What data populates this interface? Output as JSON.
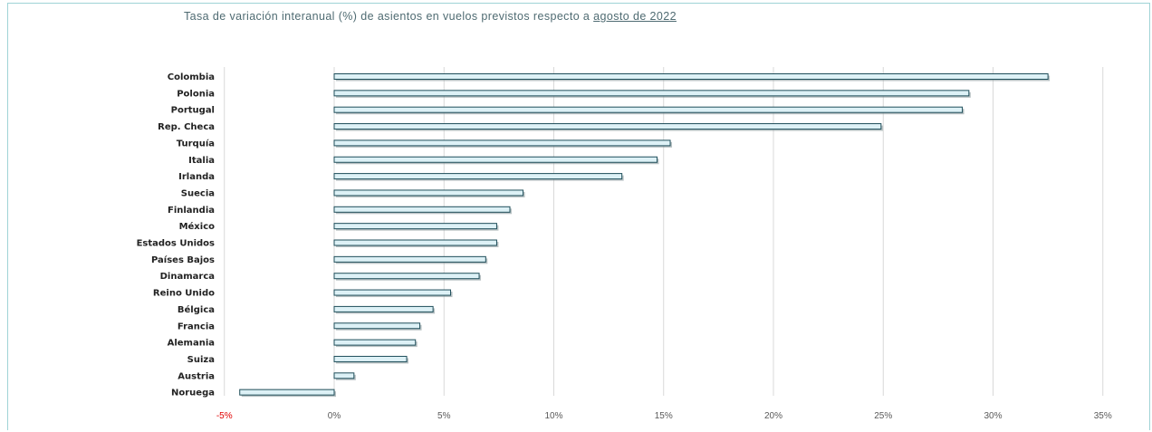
{
  "title_prefix": "Tasa de variación interanual (%) de asientos en vuelos previstos respecto a",
  "title_link": "agosto de 2022",
  "colors": {
    "bar_fill": "#ddf1f6",
    "bar_stroke": "#1f4e5a",
    "shadow": "#7f8f93",
    "grid": "#d9d9d9",
    "negative_tick": "#e00000"
  },
  "chart_data": {
    "type": "bar",
    "orientation": "horizontal",
    "title": "Tasa de variación interanual (%) de asientos en vuelos previstos respecto a agosto de 2022",
    "categories": [
      "Colombia",
      "Polonia",
      "Portugal",
      "Rep. Checa",
      "Turquía",
      "Italia",
      "Irlanda",
      "Suecia",
      "Finlandia",
      "México",
      "Estados Unidos",
      "Países Bajos",
      "Dinamarca",
      "Reino Unido",
      "Bélgica",
      "Francia",
      "Alemania",
      "Suiza",
      "Austria",
      "Noruega"
    ],
    "values": [
      32.5,
      28.9,
      28.6,
      24.9,
      15.3,
      14.7,
      13.1,
      8.6,
      8.0,
      7.4,
      7.4,
      6.9,
      6.6,
      5.3,
      4.5,
      3.9,
      3.7,
      3.3,
      0.9,
      -4.3
    ],
    "xlim": [
      -5,
      35
    ],
    "xticks": [
      -5,
      0,
      5,
      10,
      15,
      20,
      25,
      30,
      35
    ],
    "xtick_labels": [
      "-5%",
      "0%",
      "5%",
      "10%",
      "15%",
      "20%",
      "25%",
      "30%",
      "35%"
    ],
    "grid": true,
    "legend": "none"
  }
}
